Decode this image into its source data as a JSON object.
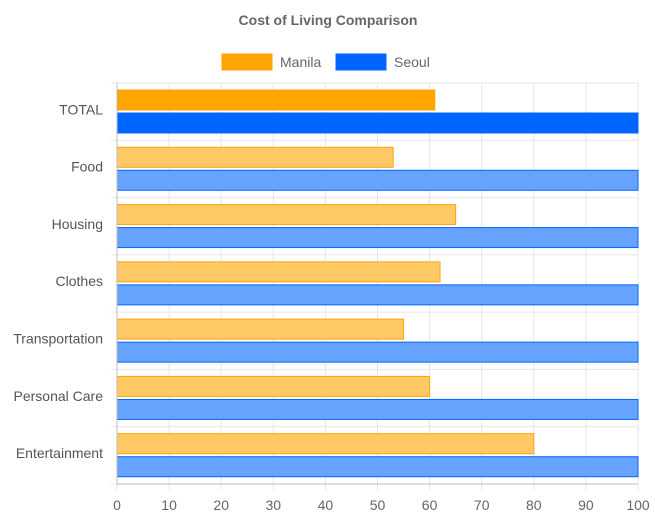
{
  "chart_data": {
    "type": "bar",
    "orientation": "horizontal",
    "title": "Cost of Living Comparison",
    "categories": [
      "TOTAL",
      "Food",
      "Housing",
      "Clothes",
      "Transportation",
      "Personal Care",
      "Entertainment"
    ],
    "series": [
      {
        "name": "Manila",
        "values": [
          61,
          53,
          65,
          62,
          55,
          60,
          80
        ],
        "color": "#FFA500",
        "highlight_color": "#FFA500",
        "faded_color": "#FFC966"
      },
      {
        "name": "Seoul",
        "values": [
          100,
          100,
          100,
          100,
          100,
          100,
          100
        ],
        "color": "#0066FF",
        "highlight_color": "#0066FF",
        "faded_color": "#66A3FF"
      }
    ],
    "highlighted_category": "TOTAL",
    "xlim": [
      0,
      100
    ],
    "x_ticks": [
      "0",
      "10",
      "20",
      "30",
      "40",
      "50",
      "60",
      "70",
      "80",
      "90",
      "100"
    ],
    "xlabel": "",
    "ylabel": "",
    "grid": true,
    "legend_position": "top"
  }
}
